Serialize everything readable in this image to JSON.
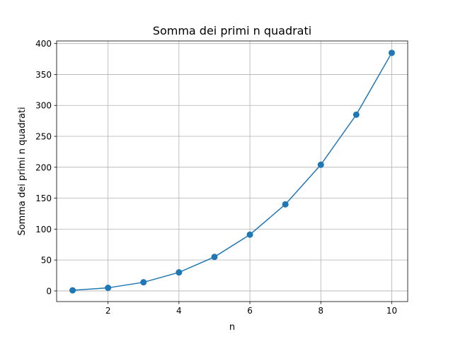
{
  "chart_data": {
    "type": "line",
    "title": "Somma dei primi n quadrati",
    "xlabel": "n",
    "ylabel": "Somma dei primi n quadrati",
    "x": [
      1,
      2,
      3,
      4,
      5,
      6,
      7,
      8,
      9,
      10
    ],
    "series": [
      {
        "values": [
          1,
          5,
          14,
          30,
          55,
          91,
          140,
          204,
          285,
          385
        ]
      }
    ],
    "xlim": [
      0.55,
      10.45
    ],
    "ylim": [
      -17.2,
      404.2
    ],
    "xticks": [
      2,
      4,
      6,
      8,
      10
    ],
    "yticks": [
      0,
      50,
      100,
      150,
      200,
      250,
      300,
      350,
      400
    ],
    "xtick_labels": [
      "2",
      "4",
      "6",
      "8",
      "10"
    ],
    "ytick_labels": [
      "0",
      "50",
      "100",
      "150",
      "200",
      "250",
      "300",
      "350",
      "400"
    ],
    "grid": true,
    "marker": "circle",
    "colors": {
      "series": "#1f77b4",
      "grid": "#b0b0b0",
      "axes": "#000000"
    }
  }
}
